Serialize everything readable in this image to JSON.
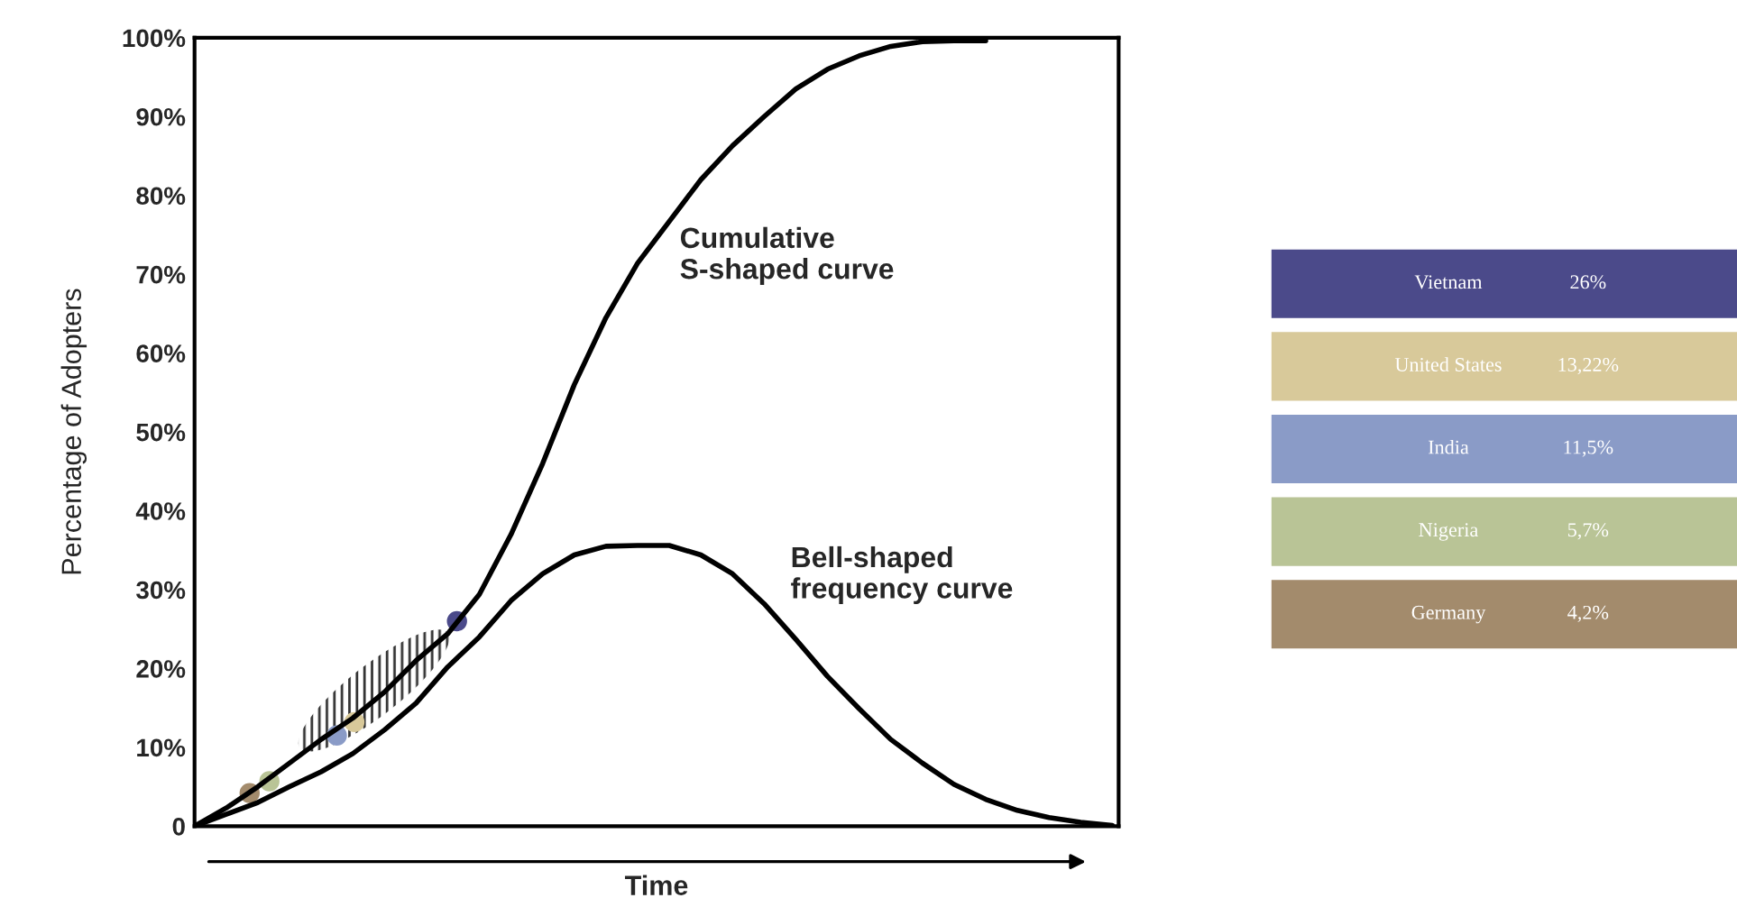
{
  "chart_data": [
    {
      "type": "line",
      "xlabel": "Time",
      "ylabel": "Percentage of Adopters",
      "categories": [
        null,
        null,
        null,
        null,
        null,
        null,
        null,
        null,
        null,
        null,
        null,
        null,
        null,
        null,
        null,
        null,
        null,
        null,
        null,
        null,
        null,
        null,
        null,
        null,
        null,
        null,
        null,
        null,
        null,
        null
      ],
      "series": [
        {
          "color": "#000000",
          "values": [
            0,
            2.3,
            5,
            8,
            11,
            13.7,
            17,
            21,
            24.4,
            29.4,
            37,
            46,
            56,
            64.5,
            71.4,
            76.7,
            82,
            86.3,
            90,
            93.5,
            96,
            97.7,
            98.9,
            99.5,
            99.6,
            99.6,
            null,
            null,
            null,
            null
          ]
        },
        {
          "color": "#000000",
          "values": [
            0,
            1.5,
            3,
            5,
            6.9,
            9.2,
            12.2,
            15.6,
            20.2,
            24,
            28.6,
            32,
            34.4,
            35.5,
            35.6,
            35.6,
            34.4,
            32,
            28.2,
            23.7,
            19,
            14.9,
            11,
            8,
            5.3,
            3.4,
            2,
            1.1,
            0.5,
            0.1
          ]
        }
      ],
      "annotations": [
        "Cumulative\nS-shaped curve",
        "Bell-shaped\nfrequency curve"
      ],
      "ylim": [
        0,
        100
      ],
      "yticks": [
        {
          "value": 0,
          "label": "0"
        },
        {
          "value": 10,
          "label": "10%"
        },
        {
          "value": 20,
          "label": "20%"
        },
        {
          "value": 30,
          "label": "30%"
        },
        {
          "value": 40,
          "label": "40%"
        },
        {
          "value": 50,
          "label": "50%"
        },
        {
          "value": 60,
          "label": "60%"
        },
        {
          "value": 70,
          "label": "70%"
        },
        {
          "value": 80,
          "label": "80%"
        },
        {
          "value": 90,
          "label": "90%"
        },
        {
          "value": 100,
          "label": "100%"
        }
      ],
      "tick_labels": "y",
      "line_style": "solid"
    },
    {
      "type": "other",
      "annotations": [
        "Vietnam",
        "26%",
        "United States",
        "13,22%",
        "India",
        "11,5%",
        "Nigeria",
        "5,7%",
        "Germany",
        "4,2%"
      ]
    }
  ]
}
